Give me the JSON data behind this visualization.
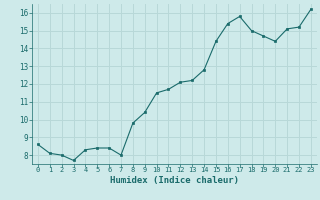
{
  "x": [
    0,
    1,
    2,
    3,
    4,
    5,
    6,
    7,
    8,
    9,
    10,
    11,
    12,
    13,
    14,
    15,
    16,
    17,
    18,
    19,
    20,
    21,
    22,
    23
  ],
  "y": [
    8.6,
    8.1,
    8.0,
    7.7,
    8.3,
    8.4,
    8.4,
    8.0,
    9.8,
    10.4,
    11.5,
    11.7,
    12.1,
    12.2,
    12.8,
    14.4,
    15.4,
    15.8,
    15.0,
    14.7,
    14.4,
    15.1,
    15.2,
    16.2
  ],
  "xlabel": "Humidex (Indice chaleur)",
  "ylabel_ticks": [
    8,
    9,
    10,
    11,
    12,
    13,
    14,
    15,
    16
  ],
  "ylim": [
    7.5,
    16.5
  ],
  "xlim": [
    -0.5,
    23.5
  ],
  "bg_color": "#ceeaea",
  "grid_color": "#b8d8d8",
  "line_color": "#1a6b6b",
  "marker_color": "#1a6b6b"
}
